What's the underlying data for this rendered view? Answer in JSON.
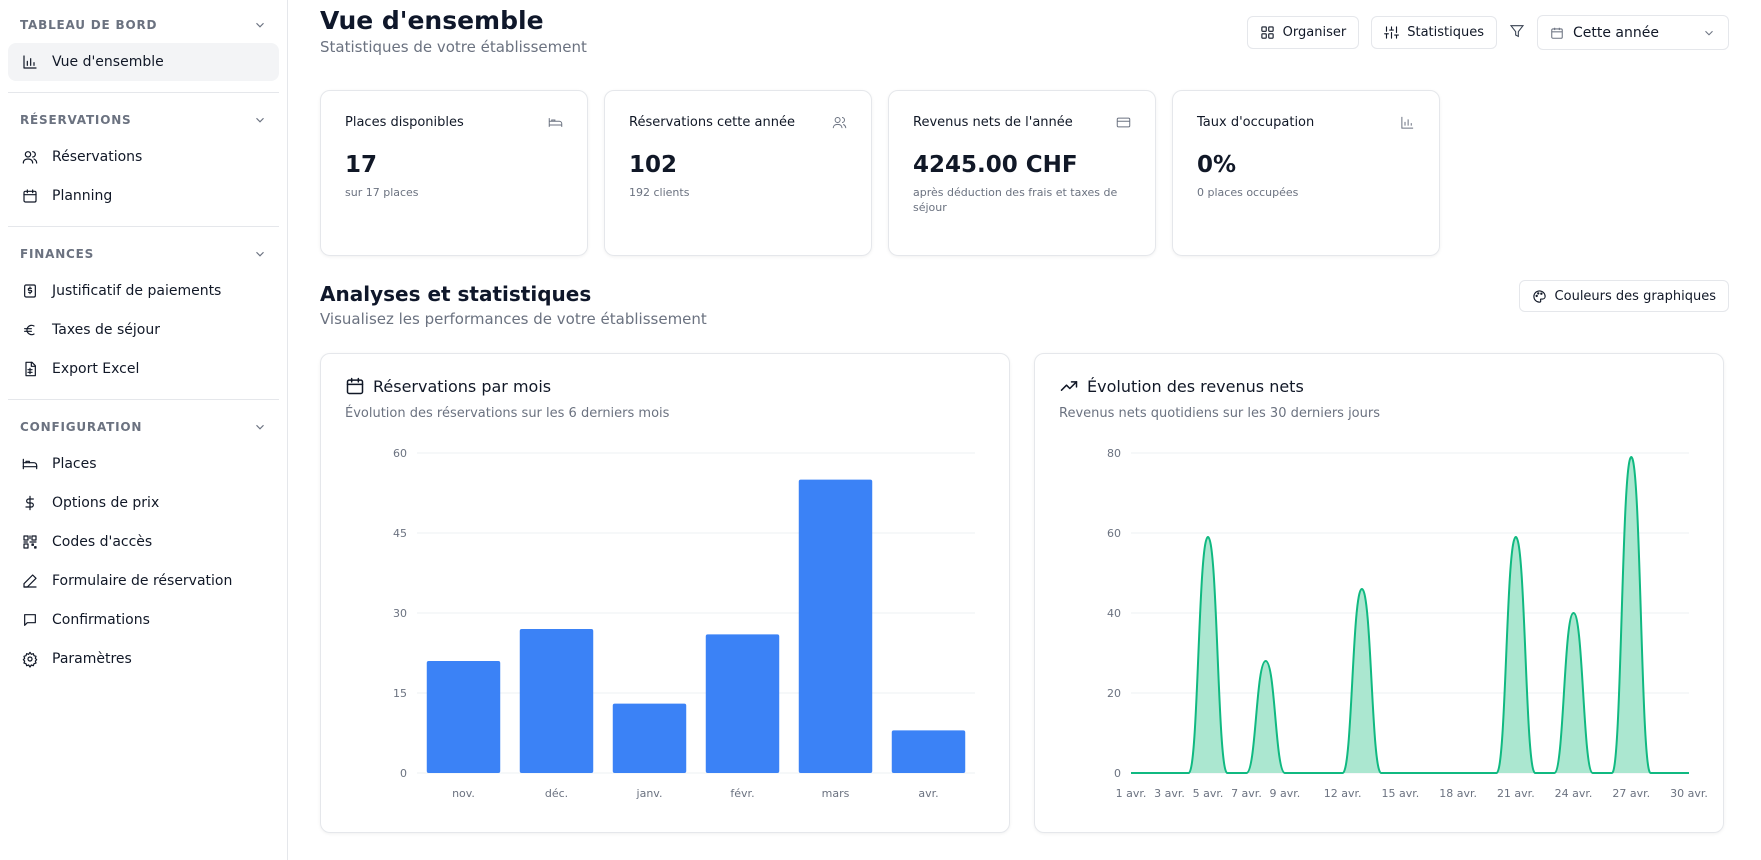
{
  "sidebar": {
    "sections": [
      {
        "title": "TABLEAU DE BORD",
        "items": [
          {
            "label": "Vue d'ensemble",
            "icon": "bar-chart-icon"
          }
        ]
      },
      {
        "title": "RÉSERVATIONS",
        "items": [
          {
            "label": "Réservations",
            "icon": "users-icon"
          },
          {
            "label": "Planning",
            "icon": "calendar-icon"
          }
        ]
      },
      {
        "title": "FINANCES",
        "items": [
          {
            "label": "Justificatif de paiements",
            "icon": "receipt-icon"
          },
          {
            "label": "Taxes de séjour",
            "icon": "euro-icon"
          },
          {
            "label": "Export Excel",
            "icon": "spreadsheet-icon"
          }
        ]
      },
      {
        "title": "CONFIGURATION",
        "items": [
          {
            "label": "Places",
            "icon": "bed-icon"
          },
          {
            "label": "Options de prix",
            "icon": "dollar-icon"
          },
          {
            "label": "Codes d'accès",
            "icon": "qr-code-icon"
          },
          {
            "label": "Formulaire de réservation",
            "icon": "pen-icon"
          },
          {
            "label": "Confirmations",
            "icon": "message-icon"
          },
          {
            "label": "Paramètres",
            "icon": "gear-icon"
          }
        ]
      }
    ],
    "active": "Vue d'ensemble"
  },
  "header": {
    "title": "Vue d'ensemble",
    "subtitle": "Statistiques de votre établissement",
    "organize_label": "Organiser",
    "stats_label": "Statistiques",
    "period_value": "Cette année"
  },
  "stats": [
    {
      "label": "Places disponibles",
      "value": "17",
      "note": "sur 17 places",
      "icon": "bed-icon"
    },
    {
      "label": "Réservations cette année",
      "value": "102",
      "note": "192 clients",
      "icon": "users-icon"
    },
    {
      "label": "Revenus nets de l'année",
      "value": "4245.00 CHF",
      "note": "après déduction des frais et taxes de séjour",
      "icon": "credit-card-icon"
    },
    {
      "label": "Taux d'occupation",
      "value": "0%",
      "note": "0 places occupées",
      "icon": "bar-chart-icon"
    }
  ],
  "analysis": {
    "title": "Analyses et statistiques",
    "subtitle": "Visualisez les performances de votre établissement",
    "colors_label": "Couleurs des graphiques"
  },
  "charts": {
    "reservations": {
      "title": "Réservations par mois",
      "subtitle": "Évolution des réservations sur les 6 derniers mois"
    },
    "revenue": {
      "title": "Évolution des revenus nets",
      "subtitle": "Revenus nets quotidiens sur les 30 derniers jours"
    }
  },
  "chart_data": [
    {
      "type": "bar",
      "categories": [
        "nov.",
        "déc.",
        "janv.",
        "févr.",
        "mars",
        "avr."
      ],
      "values": [
        21,
        27,
        13,
        26,
        55,
        8
      ],
      "ylim": [
        0,
        60
      ],
      "yticks": [
        0,
        15,
        30,
        45,
        60
      ],
      "grid": true,
      "color": "#3b82f6"
    },
    {
      "type": "area",
      "x": [
        "1 avr.",
        "2 avr.",
        "3 avr.",
        "4 avr.",
        "5 avr.",
        "6 avr.",
        "7 avr.",
        "8 avr.",
        "9 avr.",
        "10 avr.",
        "11 avr.",
        "12 avr.",
        "13 avr.",
        "14 avr.",
        "15 avr.",
        "16 avr.",
        "17 avr.",
        "18 avr.",
        "19 avr.",
        "20 avr.",
        "21 avr.",
        "22 avr.",
        "23 avr.",
        "24 avr.",
        "25 avr.",
        "26 avr.",
        "27 avr.",
        "28 avr.",
        "29 avr.",
        "30 avr."
      ],
      "xtick_labels": [
        "1 avr.",
        "3 avr.",
        "5 avr.",
        "7 avr.",
        "9 avr.",
        "12 avr.",
        "15 avr.",
        "18 avr.",
        "21 avr.",
        "24 avr.",
        "27 avr.",
        "30 avr."
      ],
      "values": [
        0,
        0,
        0,
        0,
        59,
        0,
        0,
        28,
        0,
        0,
        0,
        0,
        46,
        0,
        0,
        0,
        0,
        0,
        0,
        0,
        59,
        0,
        0,
        40,
        0,
        0,
        79,
        0,
        0,
        0
      ],
      "ylim": [
        0,
        80
      ],
      "yticks": [
        0,
        20,
        40,
        60,
        80
      ],
      "grid": true,
      "line_color": "#10b981",
      "fill_color": "#a7e6cd"
    }
  ]
}
